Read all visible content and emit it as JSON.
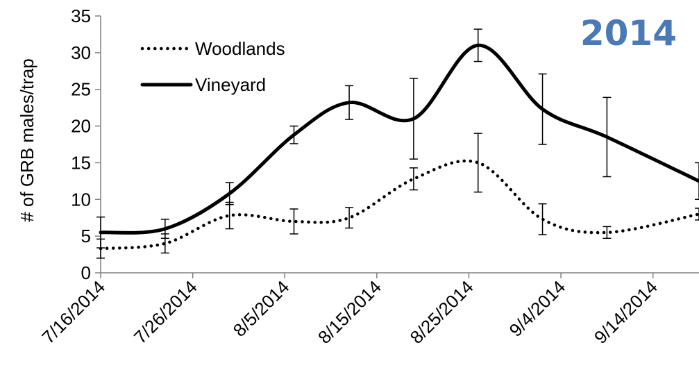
{
  "chart_data": {
    "type": "line",
    "ylabel": "# of GRB males/trap",
    "annotation": "2014",
    "annotation_color": "#4a7ab5",
    "ylim": [
      0,
      35
    ],
    "yticks": [
      0,
      5,
      10,
      15,
      20,
      25,
      30,
      35
    ],
    "xlim": [
      "2014-07-16",
      "2014-09-19"
    ],
    "xticks": [
      "2014-07-16",
      "2014-07-26",
      "2014-08-05",
      "2014-08-15",
      "2014-08-25",
      "2014-09-04",
      "2014-09-14"
    ],
    "xtick_labels": [
      "7/16/2014",
      "7/26/2014",
      "8/5/2014",
      "8/15/2014",
      "8/25/2014",
      "9/4/2014",
      "9/14/2014"
    ],
    "legend_position": "top-left",
    "series": [
      {
        "name": "Woodlands",
        "style": "dotted",
        "color": "#000000",
        "x": [
          "2014-07-16",
          "2014-07-23",
          "2014-07-30",
          "2014-08-06",
          "2014-08-12",
          "2014-08-19",
          "2014-08-26",
          "2014-09-02",
          "2014-09-09",
          "2014-09-19"
        ],
        "y": [
          3.3,
          4.0,
          7.8,
          7.0,
          7.5,
          12.8,
          15.0,
          7.3,
          5.5,
          8.0
        ],
        "error": [
          1.3,
          1.3,
          1.8,
          1.7,
          1.4,
          1.5,
          4.0,
          2.1,
          0.8,
          0.8
        ]
      },
      {
        "name": "Vineyard",
        "style": "solid",
        "color": "#000000",
        "x": [
          "2014-07-16",
          "2014-07-23",
          "2014-07-30",
          "2014-08-06",
          "2014-08-12",
          "2014-08-19",
          "2014-08-26",
          "2014-09-02",
          "2014-09-09",
          "2014-09-19"
        ],
        "y": [
          5.5,
          6.0,
          10.8,
          18.8,
          23.2,
          21.0,
          31.0,
          22.3,
          18.5,
          12.5
        ],
        "error": [
          2.1,
          1.3,
          1.5,
          1.2,
          2.3,
          5.5,
          2.2,
          4.8,
          5.4,
          2.5
        ]
      }
    ]
  }
}
